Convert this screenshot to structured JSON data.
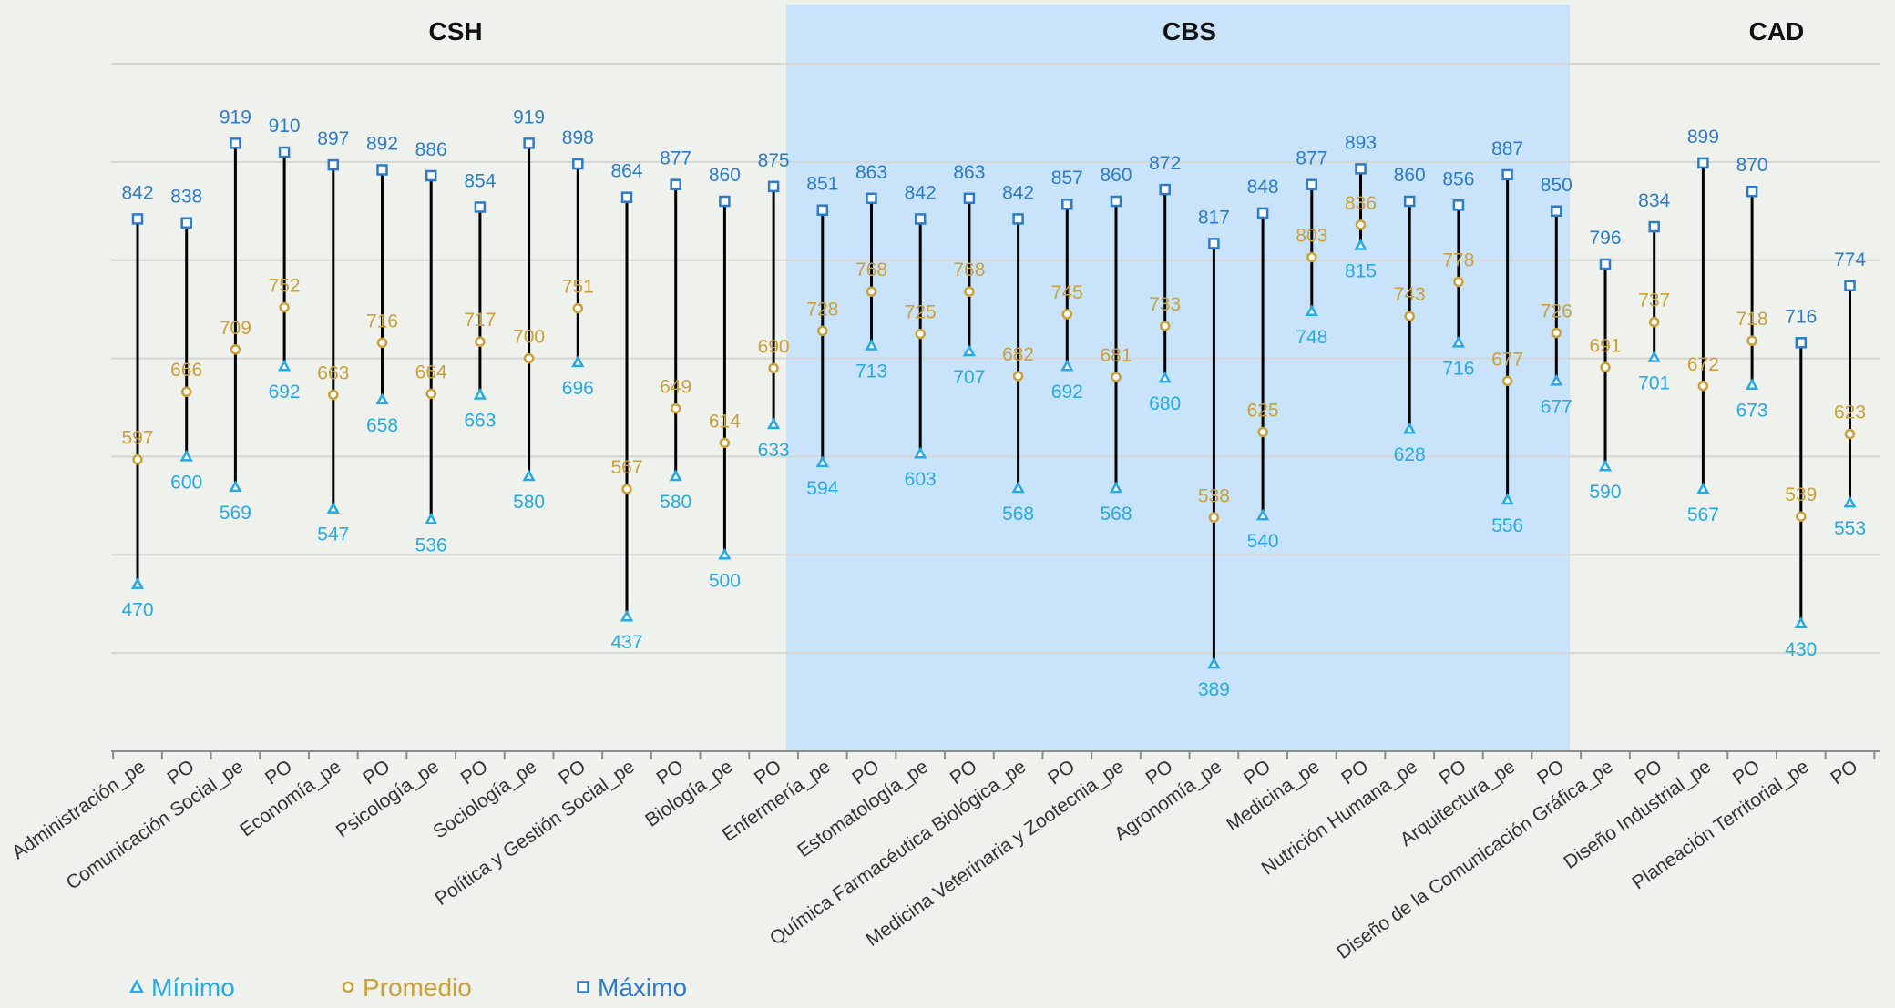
{
  "chart_data": {
    "type": "range",
    "y_range": [
      300,
      1000
    ],
    "grid": true,
    "colors": {
      "background": "#eff1ec",
      "highlight": "#c9e3fb",
      "grid": "#d4d6d3",
      "line": "#000000",
      "min": "#27a9e1",
      "avg": "#c9a03a",
      "max": "#2d7bc8"
    },
    "groups": [
      {
        "label": "CSH",
        "from": 0,
        "to": 13,
        "highlight": false
      },
      {
        "label": "CBS",
        "from": 14,
        "to": 29,
        "highlight": true
      },
      {
        "label": "CAD",
        "from": 30,
        "to": 37,
        "highlight": false
      }
    ],
    "categories": [
      "Administración_pe",
      "PO",
      "Comunicación Social_pe",
      "PO",
      "Economía_pe",
      "PO",
      "Psicología_pe",
      "PO",
      "Sociología_pe",
      "PO",
      "Política y Gestión Social_pe",
      "PO",
      "Biología_pe",
      "PO",
      "Enfermería_pe",
      "PO",
      "Estomatología_pe",
      "PO",
      "Química Farmacéutica Biológica_pe",
      "PO",
      "Medicina Veterinaria y Zootecnia_pe",
      "PO",
      "Agronomía_pe",
      "PO",
      "Medicina_pe",
      "PO",
      "Nutrición Humana_pe",
      "PO",
      "Arquitectura_pe",
      "PO",
      "Diseño de la Comunicación Gráfica_pe",
      "PO",
      "Diseño Industrial_pe",
      "PO",
      "Planeación Territorial_pe",
      "PO"
    ],
    "series": [
      {
        "name": "Mínimo",
        "values": [
          470,
          600,
          569,
          692,
          547,
          658,
          536,
          663,
          580,
          696,
          437,
          580,
          500,
          633,
          594,
          713,
          603,
          707,
          568,
          692,
          568,
          680,
          389,
          540,
          748,
          815,
          628,
          716,
          556,
          677,
          590,
          701,
          567,
          673,
          430,
          553
        ]
      },
      {
        "name": "Promedio",
        "values": [
          597,
          666,
          709,
          752,
          663,
          716,
          664,
          717,
          700,
          751,
          567,
          649,
          614,
          690,
          728,
          768,
          725,
          768,
          682,
          745,
          681,
          733,
          538,
          625,
          803,
          836,
          743,
          778,
          677,
          726,
          691,
          737,
          672,
          718,
          539,
          623
        ]
      },
      {
        "name": "Máximo",
        "values": [
          842,
          838,
          919,
          910,
          897,
          892,
          886,
          854,
          919,
          898,
          864,
          877,
          860,
          875,
          851,
          863,
          842,
          863,
          842,
          857,
          860,
          872,
          817,
          848,
          877,
          893,
          860,
          856,
          887,
          850,
          796,
          834,
          899,
          870,
          716,
          774
        ]
      }
    ],
    "legend": [
      {
        "label": "Mínimo",
        "marker": "triangle"
      },
      {
        "label": "Promedio",
        "marker": "circle"
      },
      {
        "label": "Máximo",
        "marker": "square"
      }
    ]
  }
}
